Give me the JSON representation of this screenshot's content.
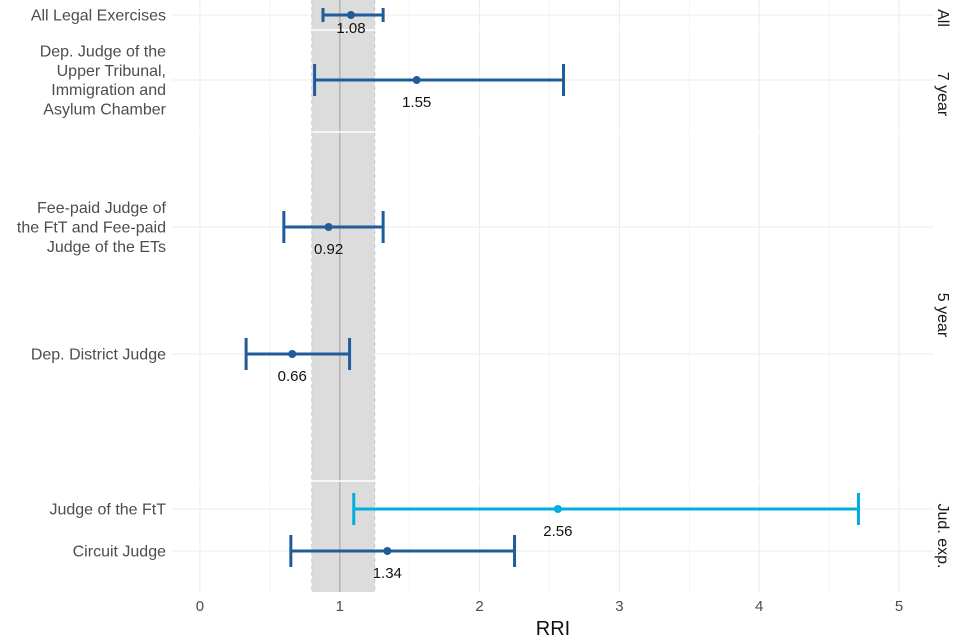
{
  "chart_data": {
    "type": "forest",
    "xlabel": "RRI",
    "xlim": [
      -0.2,
      5.25
    ],
    "x_ticks": [
      0,
      1,
      2,
      3,
      4,
      5
    ],
    "reference_band": [
      0.8,
      1.25
    ],
    "reference_line": 1,
    "colors": {
      "default": "#1f5c99",
      "highlight": "#00aee0",
      "band": "#dcdcdc",
      "grid": "#ebebeb",
      "ref_line": "#b4b4b4"
    },
    "panels": [
      {
        "strip_label": "All",
        "rows": [
          {
            "label_lines": [
              "All Legal Exercises"
            ],
            "estimate": 1.08,
            "lower": 0.88,
            "upper": 1.31,
            "value_label": "1.08",
            "highlight": false
          }
        ]
      },
      {
        "strip_label": "7 year",
        "rows": [
          {
            "label_lines": [
              "Dep. Judge of the",
              "Upper Tribunal,",
              "Immigration and",
              "Asylum Chamber"
            ],
            "estimate": 1.55,
            "lower": 0.82,
            "upper": 2.6,
            "value_label": "1.55",
            "highlight": false
          }
        ]
      },
      {
        "strip_label": "5 year",
        "rows": [
          {
            "label_lines": [
              "Fee-paid Judge of",
              "the FtT and Fee-paid",
              "Judge of the ETs"
            ],
            "estimate": 0.92,
            "lower": 0.6,
            "upper": 1.31,
            "value_label": "0.92",
            "highlight": false
          },
          {
            "label_lines": [
              "Dep. District Judge"
            ],
            "estimate": 0.66,
            "lower": 0.33,
            "upper": 1.07,
            "value_label": "0.66",
            "highlight": false
          }
        ]
      },
      {
        "strip_label": "Jud. exp.",
        "rows": [
          {
            "label_lines": [
              "Judge of the FtT"
            ],
            "estimate": 2.56,
            "lower": 1.1,
            "upper": 4.71,
            "value_label": "2.56",
            "highlight": true
          },
          {
            "label_lines": [
              "Circuit Judge"
            ],
            "estimate": 1.34,
            "lower": 0.65,
            "upper": 2.25,
            "value_label": "1.34",
            "highlight": false
          }
        ]
      }
    ]
  }
}
